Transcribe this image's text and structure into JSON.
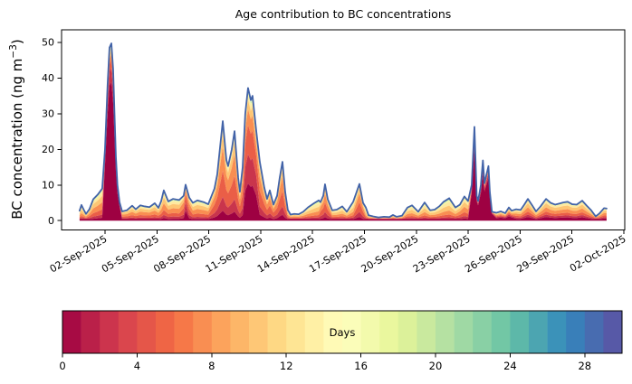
{
  "chart_data": {
    "type": "area",
    "subtype": "stacked-area-with-total-line",
    "title": "Age contribution to BC concentrations",
    "ylabel_parts": {
      "pre": "BC concentration (ng m",
      "sup": "−3",
      "post": ")"
    },
    "x_unit": "days since 01-Sep-2025 00:00",
    "xlim": [
      -1.51,
      31.05
    ],
    "ylim": [
      -2.6,
      53.5
    ],
    "yticks": [
      0,
      10,
      20,
      30,
      40,
      50
    ],
    "xticks": [
      {
        "t": 1,
        "label": "02-Sep-2025"
      },
      {
        "t": 4,
        "label": "05-Sep-2025"
      },
      {
        "t": 7,
        "label": "08-Sep-2025"
      },
      {
        "t": 10,
        "label": "11-Sep-2025"
      },
      {
        "t": 13,
        "label": "14-Sep-2025"
      },
      {
        "t": 16,
        "label": "17-Sep-2025"
      },
      {
        "t": 19,
        "label": "20-Sep-2025"
      },
      {
        "t": 22,
        "label": "23-Sep-2025"
      },
      {
        "t": 25,
        "label": "26-Sep-2025"
      },
      {
        "t": 28,
        "label": "29-Sep-2025"
      },
      {
        "t": 31,
        "label": "02-Oct-2025"
      }
    ],
    "grid": false,
    "legend": "none (colorbar below axes)",
    "line_color": "#4263a8",
    "line_width": 1.8,
    "colormap_stops": [
      "#9e0142",
      "#d53e4f",
      "#f46d43",
      "#fdae61",
      "#fee08b",
      "#ffffbf",
      "#e6f598",
      "#abdda4",
      "#66c2a5",
      "#3288bd",
      "#5e4fa2"
    ],
    "band_ages_days": [
      0.5,
      2,
      4,
      6,
      9,
      13,
      18,
      24
    ],
    "band_colors": [
      "#9e0142",
      "#c9354c",
      "#ea5e47",
      "#f98e52",
      "#fdc674",
      "#fee99f",
      "#eef8a8",
      "#a3d9a4"
    ],
    "age_profiles": {
      "fresh": [
        0.78,
        0.08,
        0.045,
        0.03,
        0.025,
        0.02,
        0.01,
        0.005
      ],
      "semi2": [
        0.28,
        0.22,
        0.22,
        0.12,
        0.07,
        0.04,
        0.02,
        0.01
      ],
      "semi": [
        0.1,
        0.14,
        0.26,
        0.24,
        0.14,
        0.06,
        0.02,
        0.01
      ],
      "mixed": [
        0.09,
        0.1,
        0.16,
        0.22,
        0.2,
        0.12,
        0.05,
        0.02
      ],
      "aged": [
        0.07,
        0.08,
        0.12,
        0.18,
        0.22,
        0.17,
        0.08,
        0.03
      ],
      "old": [
        0.05,
        0.06,
        0.09,
        0.14,
        0.2,
        0.22,
        0.13,
        0.06
      ],
      "postfresh": [
        0.33,
        0.13,
        0.11,
        0.13,
        0.13,
        0.09,
        0.03,
        0.02
      ],
      "late": [
        0.17,
        0.11,
        0.14,
        0.19,
        0.19,
        0.11,
        0.05,
        0.02
      ]
    },
    "points_columns": [
      "t_days",
      "total_BC_ng_m3",
      "age_profile"
    ],
    "points": [
      [
        -0.47,
        2.8,
        "aged"
      ],
      [
        -0.36,
        4.4,
        "aged"
      ],
      [
        -0.22,
        3.0,
        "aged"
      ],
      [
        -0.1,
        1.9,
        "aged"
      ],
      [
        0.1,
        3.2,
        "mixed"
      ],
      [
        0.32,
        6.0,
        "mixed"
      ],
      [
        0.58,
        7.3,
        "mixed"
      ],
      [
        0.84,
        9.0,
        "mixed"
      ],
      [
        1.0,
        20.0,
        "fresh"
      ],
      [
        1.15,
        38.0,
        "fresh"
      ],
      [
        1.26,
        48.5,
        "fresh"
      ],
      [
        1.37,
        49.7,
        "fresh"
      ],
      [
        1.47,
        42.5,
        "fresh"
      ],
      [
        1.55,
        30.0,
        "fresh"
      ],
      [
        1.63,
        18.0,
        "fresh"
      ],
      [
        1.72,
        10.0,
        "fresh"
      ],
      [
        1.84,
        5.2,
        "fresh"
      ],
      [
        1.99,
        2.6,
        "mixed"
      ],
      [
        2.26,
        2.9,
        "mixed"
      ],
      [
        2.57,
        4.2,
        "mixed"
      ],
      [
        2.78,
        3.2,
        "mixed"
      ],
      [
        3.04,
        4.3,
        "mixed"
      ],
      [
        3.3,
        4.0,
        "mixed"
      ],
      [
        3.57,
        3.8,
        "mixed"
      ],
      [
        3.88,
        4.9,
        "mixed"
      ],
      [
        4.09,
        3.6,
        "mixed"
      ],
      [
        4.25,
        5.5,
        "mixed"
      ],
      [
        4.4,
        8.5,
        "mixed"
      ],
      [
        4.66,
        5.4,
        "mixed"
      ],
      [
        4.93,
        6.1,
        "mixed"
      ],
      [
        5.29,
        5.8,
        "mixed"
      ],
      [
        5.55,
        7.0,
        "semi"
      ],
      [
        5.66,
        10.1,
        "semi2"
      ],
      [
        5.87,
        6.5,
        "semi"
      ],
      [
        6.08,
        5.0,
        "mixed"
      ],
      [
        6.34,
        5.7,
        "mixed"
      ],
      [
        6.71,
        5.2,
        "mixed"
      ],
      [
        6.97,
        4.6,
        "mixed"
      ],
      [
        7.33,
        9.0,
        "semi"
      ],
      [
        7.49,
        13.0,
        "semi"
      ],
      [
        7.81,
        27.9,
        "semi"
      ],
      [
        8.02,
        17.0,
        "semi"
      ],
      [
        8.12,
        15.3,
        "semi"
      ],
      [
        8.33,
        20.0,
        "semi"
      ],
      [
        8.49,
        25.1,
        "semi"
      ],
      [
        8.7,
        12.0,
        "semi"
      ],
      [
        8.8,
        8.1,
        "semi"
      ],
      [
        8.96,
        15.0,
        "semi"
      ],
      [
        9.11,
        30.0,
        "semi2"
      ],
      [
        9.27,
        37.2,
        "semi2"
      ],
      [
        9.43,
        33.8,
        "semi2"
      ],
      [
        9.53,
        35.0,
        "semi2"
      ],
      [
        9.74,
        25.4,
        "semi2"
      ],
      [
        9.95,
        16.5,
        "semi"
      ],
      [
        10.21,
        9.3,
        "semi"
      ],
      [
        10.37,
        6.1,
        "semi"
      ],
      [
        10.53,
        8.5,
        "semi"
      ],
      [
        10.74,
        4.5,
        "semi"
      ],
      [
        10.95,
        7.0,
        "semi"
      ],
      [
        11.1,
        12.0,
        "semi"
      ],
      [
        11.26,
        16.5,
        "semi"
      ],
      [
        11.42,
        8.0,
        "semi"
      ],
      [
        11.57,
        3.0,
        "aged"
      ],
      [
        11.73,
        1.7,
        "aged"
      ],
      [
        11.94,
        1.9,
        "aged"
      ],
      [
        12.2,
        1.8,
        "aged"
      ],
      [
        12.46,
        2.5,
        "aged"
      ],
      [
        12.73,
        3.7,
        "aged"
      ],
      [
        13.09,
        4.9,
        "aged"
      ],
      [
        13.36,
        5.7,
        "aged"
      ],
      [
        13.46,
        5.2,
        "semi"
      ],
      [
        13.62,
        7.0,
        "semi"
      ],
      [
        13.72,
        10.2,
        "semi"
      ],
      [
        13.88,
        6.0,
        "semi"
      ],
      [
        14.14,
        2.9,
        "aged"
      ],
      [
        14.4,
        3.1,
        "aged"
      ],
      [
        14.72,
        4.0,
        "aged"
      ],
      [
        14.98,
        2.5,
        "aged"
      ],
      [
        15.35,
        5.3,
        "aged"
      ],
      [
        15.71,
        10.3,
        "semi"
      ],
      [
        15.92,
        5.0,
        "semi"
      ],
      [
        16.08,
        3.7,
        "old"
      ],
      [
        16.24,
        1.5,
        "old"
      ],
      [
        16.5,
        1.2,
        "old"
      ],
      [
        16.81,
        0.9,
        "old"
      ],
      [
        17.13,
        1.1,
        "old"
      ],
      [
        17.44,
        1.0,
        "old"
      ],
      [
        17.65,
        1.6,
        "old"
      ],
      [
        17.86,
        1.1,
        "old"
      ],
      [
        18.17,
        1.4,
        "old"
      ],
      [
        18.49,
        3.7,
        "aged"
      ],
      [
        18.75,
        4.3,
        "aged"
      ],
      [
        19.11,
        2.5,
        "aged"
      ],
      [
        19.48,
        5.1,
        "aged"
      ],
      [
        19.8,
        2.9,
        "aged"
      ],
      [
        20.06,
        3.1,
        "aged"
      ],
      [
        20.32,
        4.0,
        "aged"
      ],
      [
        20.58,
        5.3,
        "aged"
      ],
      [
        20.9,
        6.3,
        "aged"
      ],
      [
        21.26,
        3.7,
        "aged"
      ],
      [
        21.52,
        4.5,
        "mixed"
      ],
      [
        21.78,
        6.8,
        "mixed"
      ],
      [
        21.99,
        5.5,
        "mixed"
      ],
      [
        22.2,
        10.0,
        "fresh"
      ],
      [
        22.36,
        26.3,
        "fresh"
      ],
      [
        22.49,
        7.0,
        "fresh"
      ],
      [
        22.57,
        5.5,
        "fresh"
      ],
      [
        22.73,
        10.0,
        "fresh"
      ],
      [
        22.85,
        16.9,
        "fresh"
      ],
      [
        22.94,
        10.5,
        "fresh"
      ],
      [
        23.17,
        15.3,
        "fresh"
      ],
      [
        23.25,
        8.0,
        "fresh"
      ],
      [
        23.37,
        2.5,
        "fresh"
      ],
      [
        23.62,
        2.2,
        "postfresh"
      ],
      [
        23.88,
        2.6,
        "postfresh"
      ],
      [
        24.14,
        2.1,
        "postfresh"
      ],
      [
        24.35,
        3.7,
        "postfresh"
      ],
      [
        24.51,
        2.8,
        "postfresh"
      ],
      [
        24.77,
        3.2,
        "late"
      ],
      [
        25.03,
        3.0,
        "late"
      ],
      [
        25.24,
        4.5,
        "late"
      ],
      [
        25.45,
        6.1,
        "late"
      ],
      [
        25.71,
        4.2,
        "late"
      ],
      [
        25.92,
        2.6,
        "late"
      ],
      [
        26.18,
        4.0,
        "late"
      ],
      [
        26.5,
        6.1,
        "late"
      ],
      [
        26.76,
        5.0,
        "late"
      ],
      [
        27.02,
        4.5,
        "late"
      ],
      [
        27.28,
        4.8,
        "late"
      ],
      [
        27.49,
        5.1,
        "late"
      ],
      [
        27.75,
        5.3,
        "late"
      ],
      [
        28.01,
        4.6,
        "late"
      ],
      [
        28.27,
        4.5,
        "late"
      ],
      [
        28.59,
        5.6,
        "late"
      ],
      [
        28.85,
        4.2,
        "late"
      ],
      [
        29.11,
        2.9,
        "late"
      ],
      [
        29.37,
        1.2,
        "late"
      ],
      [
        29.58,
        2.0,
        "late"
      ],
      [
        29.85,
        3.5,
        "late"
      ],
      [
        30.0,
        3.4,
        "late"
      ]
    ],
    "colorbar": {
      "label": "Days",
      "vmin": 0,
      "vmax": 30,
      "n_segments": 30,
      "ticks": [
        0,
        4,
        8,
        12,
        16,
        20,
        24,
        28
      ],
      "orientation": "horizontal"
    }
  }
}
